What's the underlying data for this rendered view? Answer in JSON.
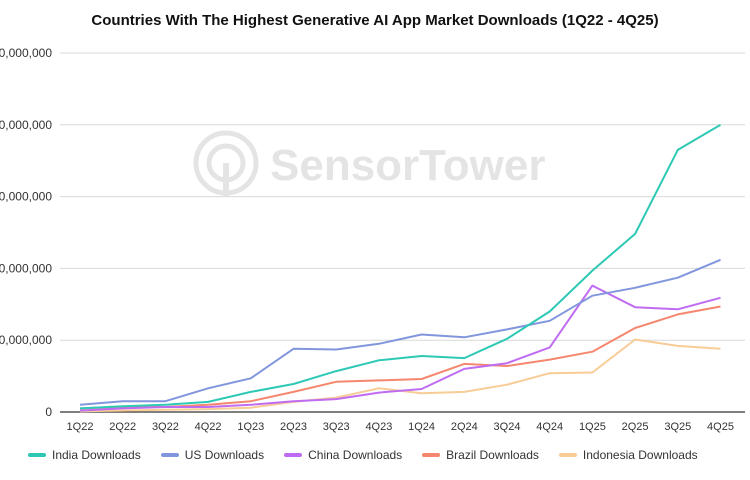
{
  "chart_data": {
    "type": "line",
    "title": "Countries With The Highest Generative AI App Market Downloads (1Q22 - 4Q25)",
    "xlabel": "",
    "ylabel": "",
    "categories": [
      "1Q22",
      "2Q22",
      "3Q22",
      "4Q22",
      "1Q23",
      "2Q23",
      "3Q23",
      "4Q23",
      "1Q24",
      "2Q24",
      "3Q24",
      "4Q24",
      "1Q25",
      "2Q25",
      "3Q25",
      "4Q25"
    ],
    "yticks": [
      0,
      100000000,
      200000000,
      300000000,
      400000000,
      500000000
    ],
    "ytick_labels": [
      "0",
      "0,000,000",
      "0,000,000",
      "0,000,000",
      "0,000,000",
      "0,000,000"
    ],
    "ylim": [
      0,
      500000000
    ],
    "grid": "horizontal",
    "legend_position": "bottom",
    "watermark": "SensorTower",
    "series": [
      {
        "name": "India Downloads",
        "color": "#2dc9b4",
        "values": [
          5000000,
          8000000,
          10000000,
          14000000,
          28000000,
          39000000,
          57000000,
          72000000,
          78000000,
          75000000,
          102000000,
          140000000,
          197000000,
          248000000,
          365000000,
          400000000
        ]
      },
      {
        "name": "US Downloads",
        "color": "#8196dd",
        "values": [
          10000000,
          15000000,
          15000000,
          33000000,
          47000000,
          88000000,
          87000000,
          95000000,
          108000000,
          104000000,
          115000000,
          127000000,
          162000000,
          173000000,
          187000000,
          212000000
        ]
      },
      {
        "name": "China Downloads",
        "color": "#c06cf2",
        "values": [
          2000000,
          5000000,
          7000000,
          7000000,
          10000000,
          15000000,
          18000000,
          27000000,
          32000000,
          60000000,
          68000000,
          90000000,
          176000000,
          146000000,
          143000000,
          159000000
        ]
      },
      {
        "name": "Brazil Downloads",
        "color": "#f5876e",
        "values": [
          5000000,
          7000000,
          7000000,
          10000000,
          15000000,
          28000000,
          42000000,
          44000000,
          46000000,
          67000000,
          64000000,
          73000000,
          84000000,
          117000000,
          136000000,
          147000000
        ]
      },
      {
        "name": "Indonesia Downloads",
        "color": "#f8cc96",
        "values": [
          1000000,
          2000000,
          3000000,
          4000000,
          6000000,
          14000000,
          20000000,
          33000000,
          26000000,
          28000000,
          38000000,
          54000000,
          55000000,
          101000000,
          92000000,
          88000000
        ]
      }
    ]
  }
}
